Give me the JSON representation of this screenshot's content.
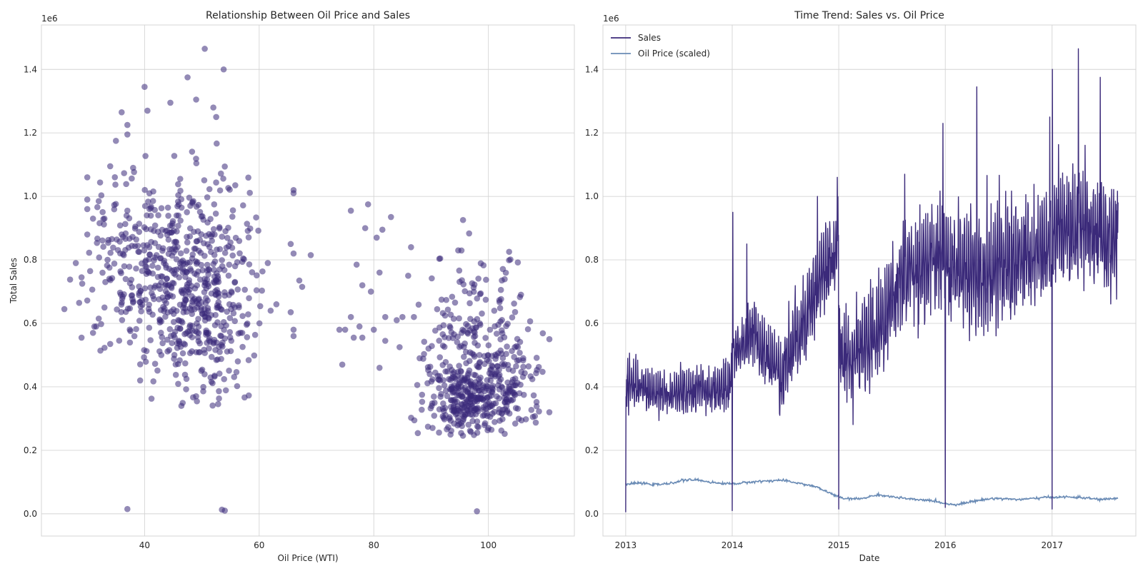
{
  "chart_data": [
    {
      "type": "scatter",
      "title": "Relationship Between Oil Price and Sales",
      "xlabel": "Oil Price (WTI)",
      "ylabel": "Total Sales",
      "y_offset_label": "1e6",
      "xlim": [
        22,
        115
      ],
      "ylim": [
        -70000,
        1540000
      ],
      "xticks": [
        40,
        60,
        80,
        100
      ],
      "yticks": [
        0,
        200000,
        400000,
        600000,
        800000,
        1000000,
        1200000,
        1400000
      ],
      "ytick_labels": [
        "0.0",
        "0.2",
        "0.4",
        "0.6",
        "0.8",
        "1.0",
        "1.2",
        "1.4"
      ],
      "grid": true,
      "color": "#3b2a7a",
      "point_alpha": 0.55,
      "points": [
        [
          26,
          645000
        ],
        [
          27,
          738000
        ],
        [
          28,
          790000
        ],
        [
          29,
          745000
        ],
        [
          30,
          1060000
        ],
        [
          30,
          990000
        ],
        [
          30,
          960000
        ],
        [
          30,
          880000
        ],
        [
          29,
          555000
        ],
        [
          31,
          930000
        ],
        [
          32,
          985000
        ],
        [
          33,
          650000
        ],
        [
          33,
          930000
        ],
        [
          34,
          1095000
        ],
        [
          35,
          1175000
        ],
        [
          36,
          1265000
        ],
        [
          37,
          1195000
        ],
        [
          37,
          1225000
        ],
        [
          38,
          1090000
        ],
        [
          36,
          880000
        ],
        [
          37,
          955000
        ],
        [
          34,
          535000
        ],
        [
          31,
          570000
        ],
        [
          30,
          672000
        ],
        [
          32,
          615000
        ],
        [
          37,
          15000
        ],
        [
          53.5,
          13000
        ],
        [
          54,
          10000
        ],
        [
          98,
          8000
        ],
        [
          50.5,
          1465000
        ],
        [
          53.8,
          1400000
        ],
        [
          40,
          1345000
        ],
        [
          47.5,
          1375000
        ],
        [
          44.5,
          1295000
        ],
        [
          49,
          1305000
        ],
        [
          52,
          1280000
        ],
        [
          40.5,
          1270000
        ],
        [
          52.5,
          1250000
        ],
        [
          66,
          1020000
        ],
        [
          66,
          1010000
        ],
        [
          61.5,
          790000
        ],
        [
          63,
          660000
        ],
        [
          65.5,
          850000
        ],
        [
          66,
          820000
        ],
        [
          67,
          735000
        ],
        [
          67.5,
          715000
        ],
        [
          69,
          815000
        ],
        [
          65.5,
          635000
        ],
        [
          66,
          580000
        ],
        [
          66,
          560000
        ],
        [
          62,
          640000
        ],
        [
          74.5,
          470000
        ],
        [
          75,
          580000
        ],
        [
          76,
          620000
        ],
        [
          76,
          955000
        ],
        [
          77.5,
          590000
        ],
        [
          78,
          720000
        ],
        [
          78.5,
          900000
        ],
        [
          79,
          975000
        ],
        [
          78,
          555000
        ],
        [
          80,
          580000
        ],
        [
          80.5,
          870000
        ],
        [
          81,
          760000
        ],
        [
          81.5,
          895000
        ],
        [
          82,
          620000
        ],
        [
          83,
          935000
        ],
        [
          82,
          545000
        ],
        [
          81,
          460000
        ],
        [
          84,
          610000
        ],
        [
          86,
          750000
        ],
        [
          86.5,
          840000
        ],
        [
          85,
          620000
        ],
        [
          84.5,
          525000
        ],
        [
          87,
          620000
        ],
        [
          88,
          490000
        ],
        [
          77,
          785000
        ],
        [
          79.5,
          700000
        ],
        [
          76.5,
          555000
        ],
        [
          74,
          580000
        ]
      ],
      "clusters": [
        {
          "cx": 47,
          "cy": 720000,
          "sx": 5.6,
          "sy": 150000,
          "n": 430,
          "x_min": 29,
          "x_max": 61,
          "y_min": 340000,
          "y_max": 1200000
        },
        {
          "cx": 52,
          "cy": 620000,
          "sx": 4,
          "sy": 230000,
          "n": 150,
          "x_min": 40,
          "x_max": 61,
          "y_min": 340000,
          "y_max": 1200000
        },
        {
          "cx": 36,
          "cy": 760000,
          "sx": 4,
          "sy": 150000,
          "n": 110,
          "x_min": 26,
          "x_max": 45,
          "y_min": 500000,
          "y_max": 1140000
        },
        {
          "cx": 96,
          "cy": 360000,
          "sx": 3.5,
          "sy": 60000,
          "n": 230,
          "x_min": 86,
          "x_max": 110,
          "y_min": 245000,
          "y_max": 600000
        },
        {
          "cx": 103,
          "cy": 400000,
          "sx": 3.5,
          "sy": 80000,
          "n": 150,
          "x_min": 95,
          "x_max": 111,
          "y_min": 260000,
          "y_max": 650000
        },
        {
          "cx": 97,
          "cy": 560000,
          "sx": 5,
          "sy": 130000,
          "n": 170,
          "x_min": 86,
          "x_max": 111,
          "y_min": 300000,
          "y_max": 1000000
        }
      ]
    },
    {
      "type": "line",
      "title": "Time Trend: Sales vs. Oil Price",
      "xlabel": "Date",
      "y_offset_label": "1e6",
      "xlim": [
        "2012-10-15",
        "2017-10-15"
      ],
      "ylim": [
        -70000,
        1540000
      ],
      "xticks": [
        "2013-01-01",
        "2014-01-01",
        "2015-01-01",
        "2016-01-01",
        "2017-01-01"
      ],
      "xtick_labels": [
        "2013",
        "2014",
        "2015",
        "2016",
        "2017"
      ],
      "yticks": [
        0,
        200000,
        400000,
        600000,
        800000,
        1000000,
        1200000,
        1400000
      ],
      "ytick_labels": [
        "0.0",
        "0.2",
        "0.4",
        "0.6",
        "0.8",
        "1.0",
        "1.2",
        "1.4"
      ],
      "grid": true,
      "legend_position": "top-left",
      "series": [
        {
          "name": "Sales",
          "color": "#3b2a7a",
          "base_points": [
            [
              "2013-01-01",
              400000
            ],
            [
              "2013-06-01",
              370000
            ],
            [
              "2013-12-20",
              390000
            ],
            [
              "2014-01-05",
              500000
            ],
            [
              "2014-03-15",
              560000
            ],
            [
              "2014-06-15",
              430000
            ],
            [
              "2014-08-15",
              560000
            ],
            [
              "2014-11-15",
              760000
            ],
            [
              "2014-12-31",
              820000
            ],
            [
              "2015-01-05",
              470000
            ],
            [
              "2015-03-15",
              500000
            ],
            [
              "2015-05-15",
              560000
            ],
            [
              "2015-08-15",
              750000
            ],
            [
              "2015-12-31",
              790000
            ],
            [
              "2016-01-05",
              760000
            ],
            [
              "2016-06-15",
              760000
            ],
            [
              "2016-12-31",
              810000
            ],
            [
              "2017-01-05",
              880000
            ],
            [
              "2017-04-15",
              890000
            ],
            [
              "2017-08-15",
              850000
            ]
          ],
          "amplitude": [
            [
              "2013-01-01",
              70000
            ],
            [
              "2013-12-31",
              80000
            ],
            [
              "2014-06-01",
              130000
            ],
            [
              "2014-12-31",
              150000
            ],
            [
              "2015-06-01",
              170000
            ],
            [
              "2016-06-01",
              190000
            ],
            [
              "2017-08-15",
              190000
            ]
          ],
          "dips": [
            [
              "2013-01-01",
              5000
            ],
            [
              "2014-01-01",
              10000
            ],
            [
              "2015-01-01",
              15000
            ],
            [
              "2016-01-01",
              20000
            ],
            [
              "2017-01-01",
              15000
            ]
          ],
          "peaks": [
            [
              "2013-01-08",
              490000
            ],
            [
              "2014-01-03",
              950000
            ],
            [
              "2014-02-20",
              850000
            ],
            [
              "2014-10-20",
              1000000
            ],
            [
              "2014-12-27",
              1060000
            ],
            [
              "2015-08-15",
              1070000
            ],
            [
              "2015-12-24",
              1230000
            ],
            [
              "2016-04-18",
              1345000
            ],
            [
              "2016-12-24",
              1250000
            ],
            [
              "2017-01-02",
              1400000
            ],
            [
              "2017-04-01",
              1465000
            ],
            [
              "2017-06-15",
              1375000
            ]
          ],
          "end_date": "2017-08-15"
        },
        {
          "name": "Oil Price (scaled)",
          "color": "#6a8bb5",
          "points": [
            [
              "2013-01-01",
              93000
            ],
            [
              "2013-02-15",
              97000
            ],
            [
              "2013-04-15",
              92000
            ],
            [
              "2013-06-01",
              95000
            ],
            [
              "2013-07-15",
              106000
            ],
            [
              "2013-09-01",
              107000
            ],
            [
              "2013-11-15",
              96000
            ],
            [
              "2014-01-15",
              95000
            ],
            [
              "2014-03-15",
              101000
            ],
            [
              "2014-06-15",
              106000
            ],
            [
              "2014-08-15",
              97000
            ],
            [
              "2014-10-15",
              85000
            ],
            [
              "2014-11-30",
              66000
            ],
            [
              "2015-01-15",
              48000
            ],
            [
              "2015-03-15",
              47000
            ],
            [
              "2015-05-15",
              60000
            ],
            [
              "2015-07-15",
              52000
            ],
            [
              "2015-09-15",
              45000
            ],
            [
              "2015-11-15",
              42000
            ],
            [
              "2016-01-15",
              30000
            ],
            [
              "2016-02-15",
              30000
            ],
            [
              "2016-04-15",
              41000
            ],
            [
              "2016-06-15",
              49000
            ],
            [
              "2016-09-15",
              45000
            ],
            [
              "2016-12-15",
              52000
            ],
            [
              "2017-02-15",
              53000
            ],
            [
              "2017-04-15",
              51000
            ],
            [
              "2017-06-15",
              45000
            ],
            [
              "2017-08-15",
              49000
            ]
          ]
        }
      ]
    }
  ]
}
